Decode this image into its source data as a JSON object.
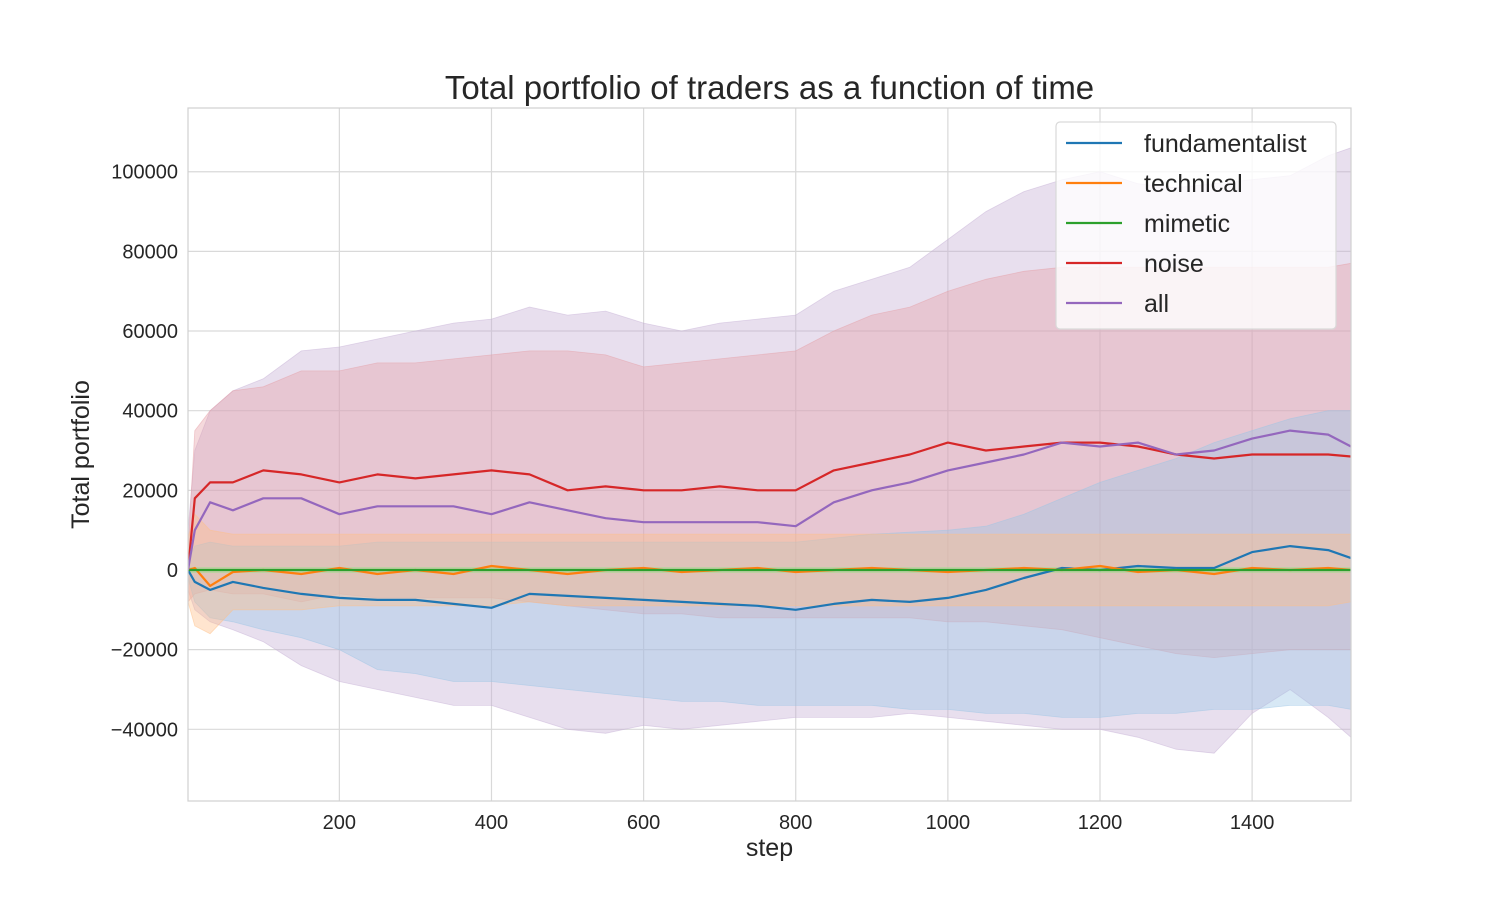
{
  "chart_data": {
    "type": "line",
    "title": "Total portfolio of traders as a function of time",
    "xlabel": "step",
    "ylabel": "Total portfolio",
    "xlim": [
      1,
      1530
    ],
    "ylim": [
      -58000,
      116000
    ],
    "x_ticks": [
      200,
      400,
      600,
      800,
      1000,
      1200,
      1400
    ],
    "x_tick_labels": [
      "200",
      "400",
      "600",
      "800",
      "1000",
      "1200",
      "1400"
    ],
    "y_ticks": [
      -40000,
      -20000,
      0,
      20000,
      40000,
      60000,
      80000,
      100000
    ],
    "y_tick_labels": [
      "−40000",
      "−20000",
      "0",
      "20000",
      "40000",
      "60000",
      "80000",
      "100000"
    ],
    "grid": true,
    "legend_position": "top-right",
    "x": [
      1,
      10,
      30,
      60,
      100,
      150,
      200,
      250,
      300,
      350,
      400,
      450,
      500,
      550,
      600,
      650,
      700,
      750,
      800,
      850,
      900,
      950,
      1000,
      1050,
      1100,
      1150,
      1200,
      1250,
      1300,
      1350,
      1400,
      1450,
      1500,
      1530
    ],
    "series": [
      {
        "name": "fundamentalist",
        "color": "#1f77b4",
        "band_color": "#9cc5e6",
        "values": [
          0,
          -3000,
          -5000,
          -3000,
          -4500,
          -6000,
          -7000,
          -7500,
          -7500,
          -8500,
          -9500,
          -6000,
          -6500,
          -7000,
          -7500,
          -8000,
          -8500,
          -9000,
          -10000,
          -8500,
          -7500,
          -8000,
          -7000,
          -5000,
          -2000,
          500,
          0,
          1000,
          500,
          500,
          4500,
          6000,
          5000,
          3000
        ],
        "band_low": [
          -2000,
          -8000,
          -12000,
          -13000,
          -15000,
          -17000,
          -20000,
          -25000,
          -26000,
          -28000,
          -28000,
          -29000,
          -30000,
          -31000,
          -32000,
          -33000,
          -33000,
          -34000,
          -34000,
          -34000,
          -34000,
          -35000,
          -35000,
          -36000,
          -36000,
          -37000,
          -37000,
          -36000,
          -36000,
          -35000,
          -35000,
          -34000,
          -34000,
          -35000
        ],
        "band_high": [
          2000,
          6000,
          7000,
          6000,
          6000,
          6000,
          6000,
          7000,
          7000,
          7000,
          7000,
          7000,
          7000,
          7000,
          7000,
          7000,
          7000,
          7000,
          7000,
          8000,
          9000,
          9500,
          10000,
          11000,
          14000,
          18000,
          22000,
          25000,
          28000,
          32000,
          35000,
          38000,
          40000,
          40000
        ]
      },
      {
        "name": "technical",
        "color": "#ff7f0e",
        "band_color": "#ffbf86",
        "values": [
          0,
          500,
          -4000,
          -500,
          0,
          -1000,
          500,
          -1000,
          0,
          -1000,
          1000,
          0,
          -1000,
          0,
          500,
          -500,
          0,
          500,
          -500,
          0,
          500,
          0,
          -500,
          0,
          500,
          0,
          1000,
          -500,
          0,
          -1000,
          500,
          0,
          500,
          0
        ],
        "band_low": [
          -8000,
          -14000,
          -16000,
          -10000,
          -10000,
          -10000,
          -9000,
          -9000,
          -9000,
          -9000,
          -9000,
          -8000,
          -9000,
          -9000,
          -9000,
          -9000,
          -9000,
          -9000,
          -9000,
          -9000,
          -9000,
          -9000,
          -9000,
          -9000,
          -9000,
          -9000,
          -9000,
          -9000,
          -9000,
          -9000,
          -9000,
          -9000,
          -9000,
          -8000
        ],
        "band_high": [
          8000,
          14000,
          10000,
          9000,
          9000,
          9000,
          9000,
          9000,
          9000,
          9000,
          9000,
          9000,
          9000,
          9000,
          9000,
          9000,
          9000,
          9000,
          9000,
          9000,
          9000,
          9000,
          9000,
          9000,
          9000,
          9000,
          9000,
          9000,
          9000,
          9000,
          9000,
          9000,
          9000,
          9000
        ]
      },
      {
        "name": "mimetic",
        "color": "#2ca02c",
        "band_color": "#98df8a",
        "values": [
          0,
          0,
          0,
          0,
          0,
          0,
          0,
          0,
          0,
          0,
          0,
          0,
          0,
          0,
          0,
          0,
          0,
          0,
          0,
          0,
          0,
          0,
          0,
          0,
          0,
          0,
          0,
          0,
          0,
          0,
          0,
          0,
          0,
          0
        ],
        "band_low": [
          -600,
          -600,
          -600,
          -600,
          -600,
          -600,
          -600,
          -600,
          -600,
          -600,
          -600,
          -600,
          -600,
          -600,
          -600,
          -600,
          -600,
          -600,
          -600,
          -600,
          -600,
          -600,
          -600,
          -600,
          -600,
          -600,
          -600,
          -600,
          -600,
          -600,
          -600,
          -600,
          -600,
          -600
        ],
        "band_high": [
          600,
          600,
          600,
          600,
          600,
          600,
          600,
          600,
          600,
          600,
          600,
          600,
          600,
          600,
          600,
          600,
          600,
          600,
          600,
          600,
          600,
          600,
          600,
          600,
          600,
          600,
          600,
          600,
          600,
          600,
          600,
          600,
          600,
          600
        ]
      },
      {
        "name": "noise",
        "color": "#d62728",
        "band_color": "#e6a0a8",
        "values": [
          0,
          18000,
          22000,
          22000,
          25000,
          24000,
          22000,
          24000,
          23000,
          24000,
          25000,
          24000,
          20000,
          21000,
          20000,
          20000,
          21000,
          20000,
          20000,
          25000,
          27000,
          29000,
          32000,
          30000,
          31000,
          32000,
          32000,
          31000,
          29000,
          28000,
          29000,
          29000,
          29000,
          28500
        ],
        "band_low": [
          -8000,
          -6000,
          -5000,
          -6000,
          -6000,
          -8000,
          -6000,
          -7000,
          -7000,
          -7000,
          -7000,
          -8000,
          -9000,
          -10000,
          -11000,
          -11000,
          -12000,
          -12000,
          -12000,
          -12000,
          -12000,
          -12000,
          -13000,
          -13000,
          -14000,
          -15000,
          -17000,
          -19000,
          -21000,
          -22000,
          -21000,
          -20000,
          -20000,
          -20000
        ],
        "band_high": [
          5000,
          35000,
          40000,
          45000,
          46000,
          50000,
          50000,
          52000,
          52000,
          53000,
          54000,
          55000,
          55000,
          54000,
          51000,
          52000,
          53000,
          54000,
          55000,
          60000,
          64000,
          66000,
          70000,
          73000,
          75000,
          76000,
          76000,
          76000,
          76000,
          76000,
          76000,
          76000,
          76000,
          77000
        ]
      },
      {
        "name": "all",
        "color": "#9467bd",
        "band_color": "#c5b0d5",
        "values": [
          0,
          10000,
          17000,
          15000,
          18000,
          18000,
          14000,
          16000,
          16000,
          16000,
          14000,
          17000,
          15000,
          13000,
          12000,
          12000,
          12000,
          12000,
          11000,
          17000,
          20000,
          22000,
          25000,
          27000,
          29000,
          32000,
          31000,
          32000,
          29000,
          30000,
          33000,
          35000,
          34000,
          31000
        ],
        "band_low": [
          -5000,
          -10000,
          -13000,
          -15000,
          -18000,
          -24000,
          -28000,
          -30000,
          -32000,
          -34000,
          -34000,
          -37000,
          -40000,
          -41000,
          -39000,
          -40000,
          -39000,
          -38000,
          -37000,
          -37000,
          -37000,
          -36000,
          -37000,
          -38000,
          -39000,
          -40000,
          -40000,
          -42000,
          -45000,
          -46000,
          -36000,
          -30000,
          -37000,
          -42000
        ],
        "band_high": [
          10000,
          30000,
          40000,
          45000,
          48000,
          55000,
          56000,
          58000,
          60000,
          62000,
          63000,
          66000,
          64000,
          65000,
          62000,
          60000,
          62000,
          63000,
          64000,
          70000,
          73000,
          76000,
          83000,
          90000,
          95000,
          98000,
          100000,
          97000,
          96000,
          97000,
          98000,
          99000,
          104000,
          106000
        ]
      }
    ]
  }
}
